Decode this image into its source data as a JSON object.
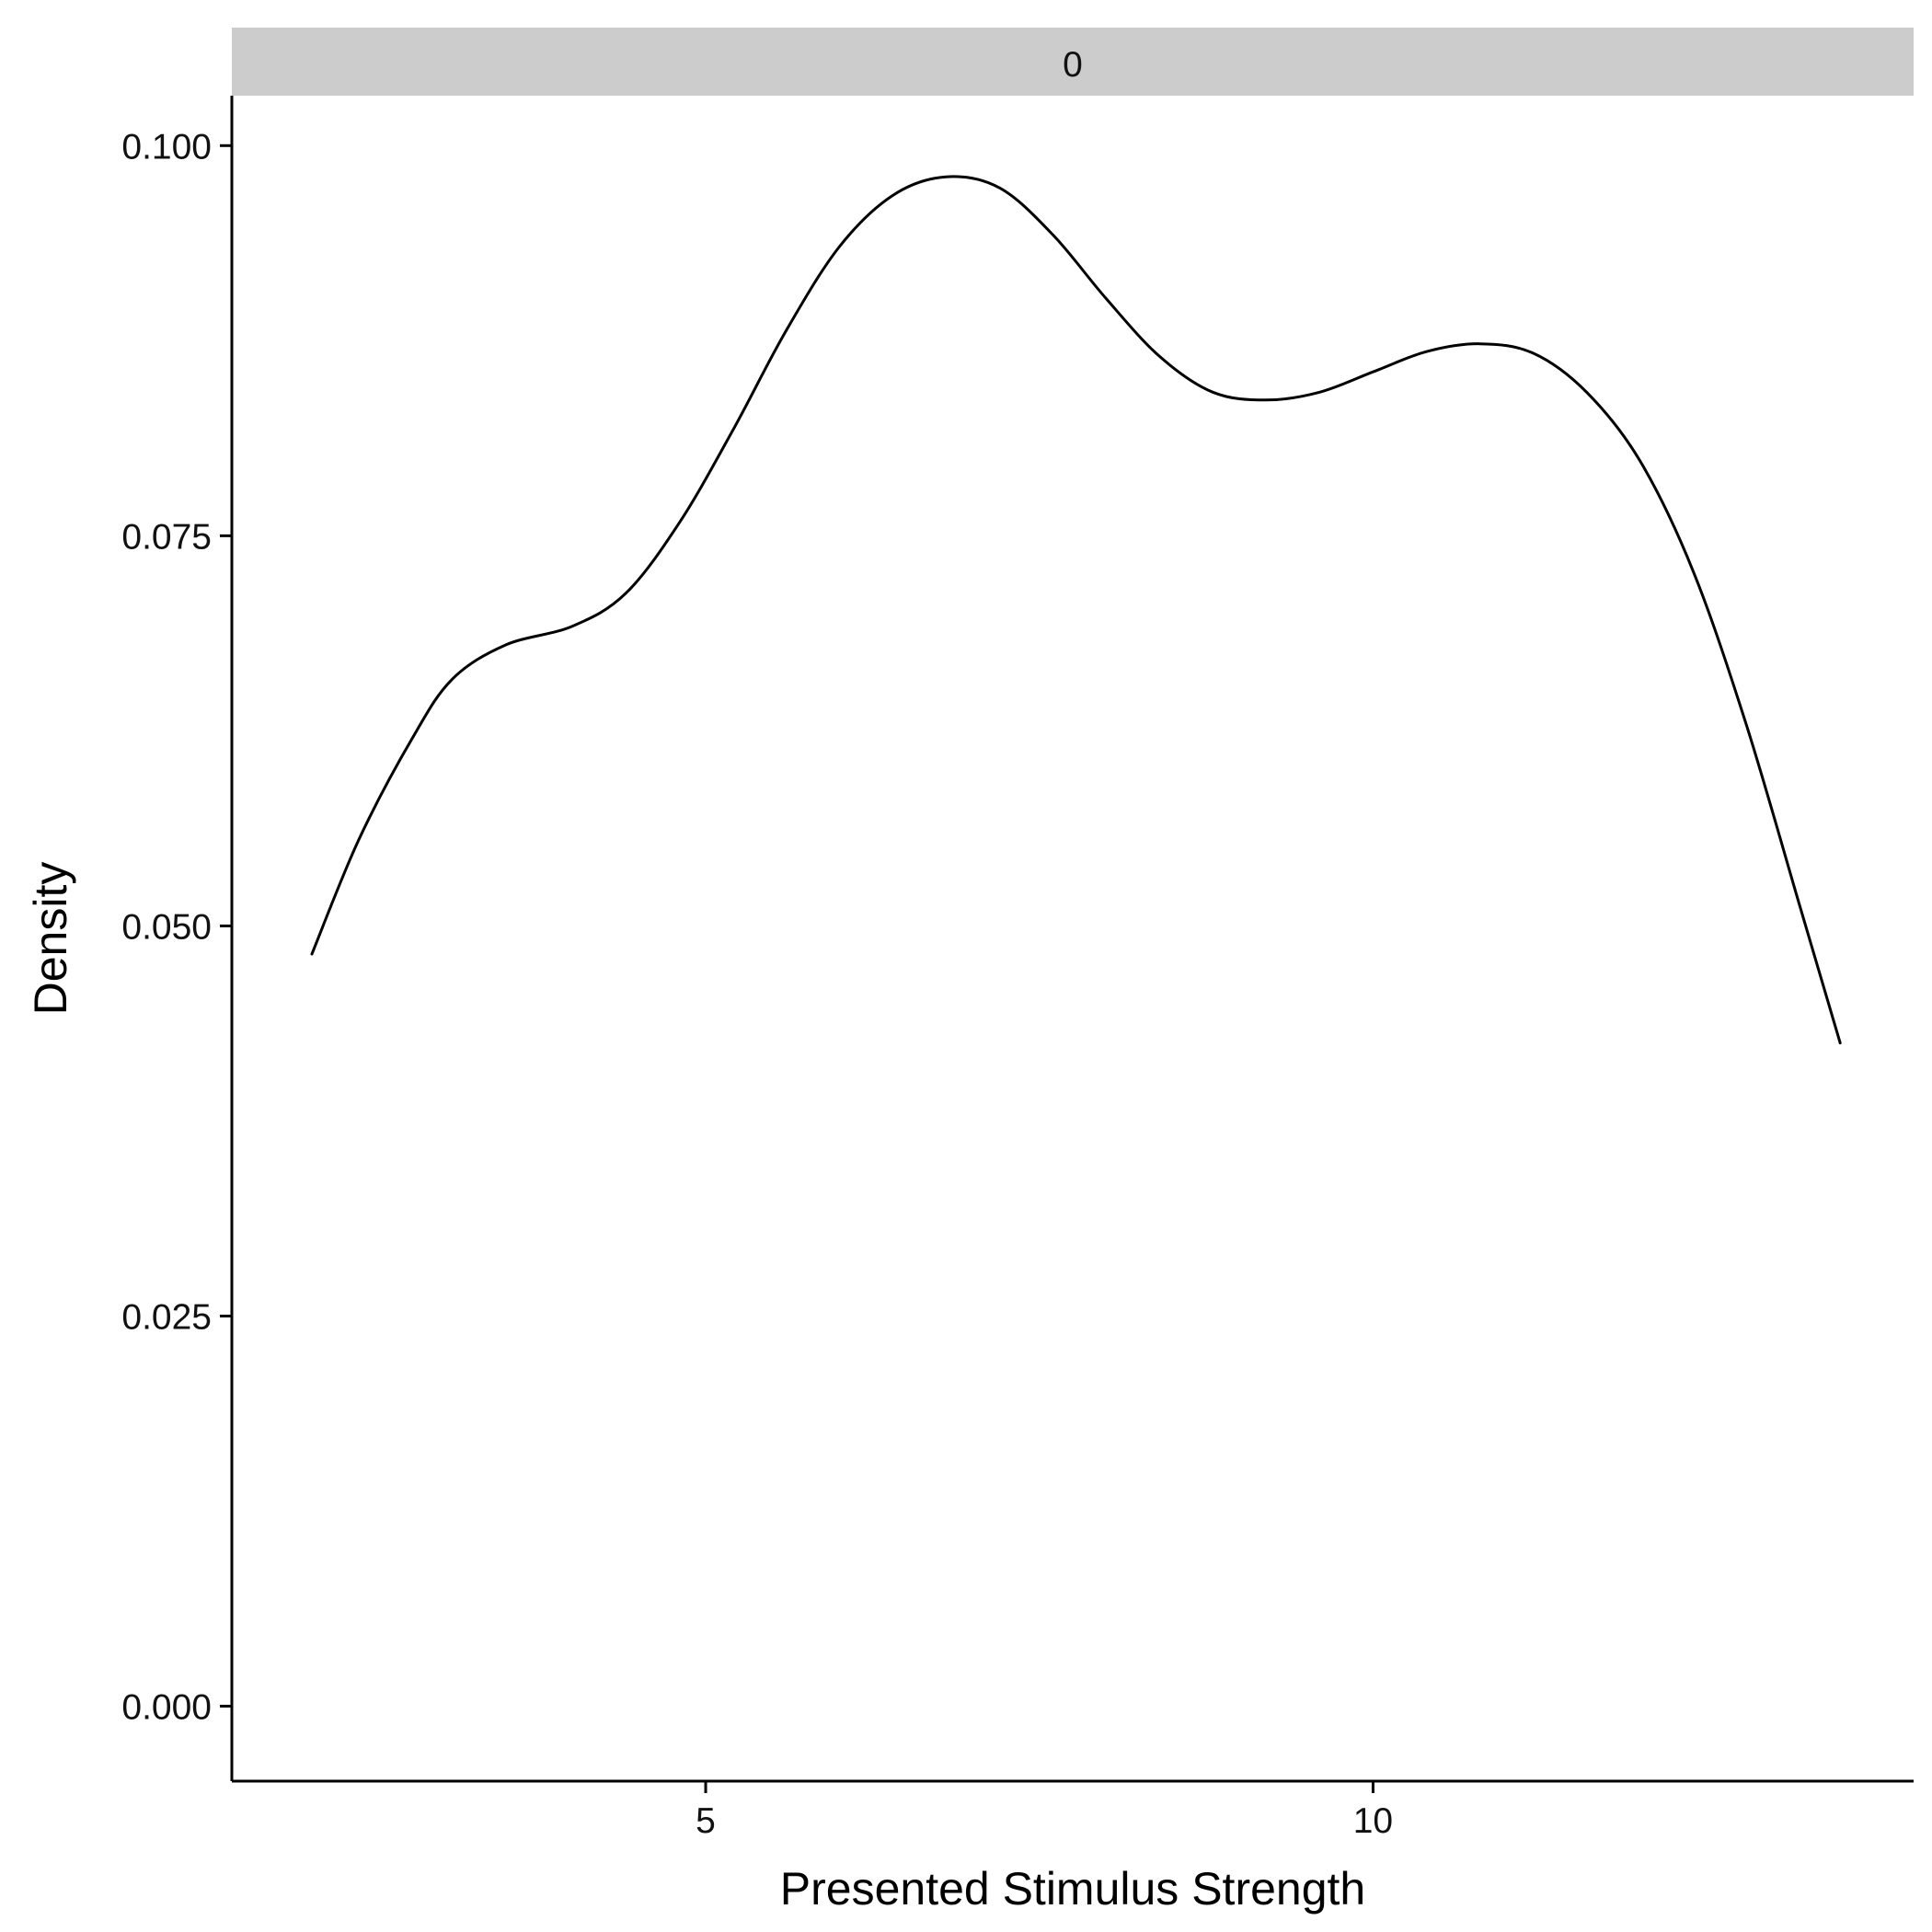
{
  "chart_data": {
    "type": "line",
    "facet_label": "0",
    "xlabel": "Presented Stimulus Strength",
    "ylabel": "Density",
    "xlim": [
      1.45,
      14.05
    ],
    "ylim": [
      -0.0048,
      0.1032
    ],
    "x_ticks": [
      5,
      10
    ],
    "x_tick_labels": [
      "5",
      "10"
    ],
    "y_ticks": [
      0.0,
      0.025,
      0.05,
      0.075,
      0.1
    ],
    "y_tick_labels": [
      "0.000",
      "0.025",
      "0.050",
      "0.075",
      "0.100"
    ],
    "grid": false,
    "legend": "none",
    "series": [
      {
        "color": "#000000",
        "x": [
          2.05,
          2.4,
          2.8,
          3.1,
          3.5,
          4.0,
          4.4,
          4.8,
          5.2,
          5.6,
          6.0,
          6.4,
          6.8,
          7.2,
          7.6,
          8.0,
          8.4,
          8.8,
          9.2,
          9.6,
          10.0,
          10.4,
          10.8,
          11.2,
          11.6,
          12.0,
          12.4,
          12.8,
          13.2,
          13.5
        ],
        "y": [
          0.0482,
          0.0555,
          0.062,
          0.0658,
          0.068,
          0.0692,
          0.0713,
          0.0758,
          0.0817,
          0.0881,
          0.0935,
          0.0968,
          0.098,
          0.0973,
          0.0943,
          0.0902,
          0.0865,
          0.0842,
          0.0837,
          0.0842,
          0.0855,
          0.0868,
          0.0873,
          0.0867,
          0.0842,
          0.0798,
          0.0727,
          0.0628,
          0.0512,
          0.0425
        ]
      }
    ]
  }
}
